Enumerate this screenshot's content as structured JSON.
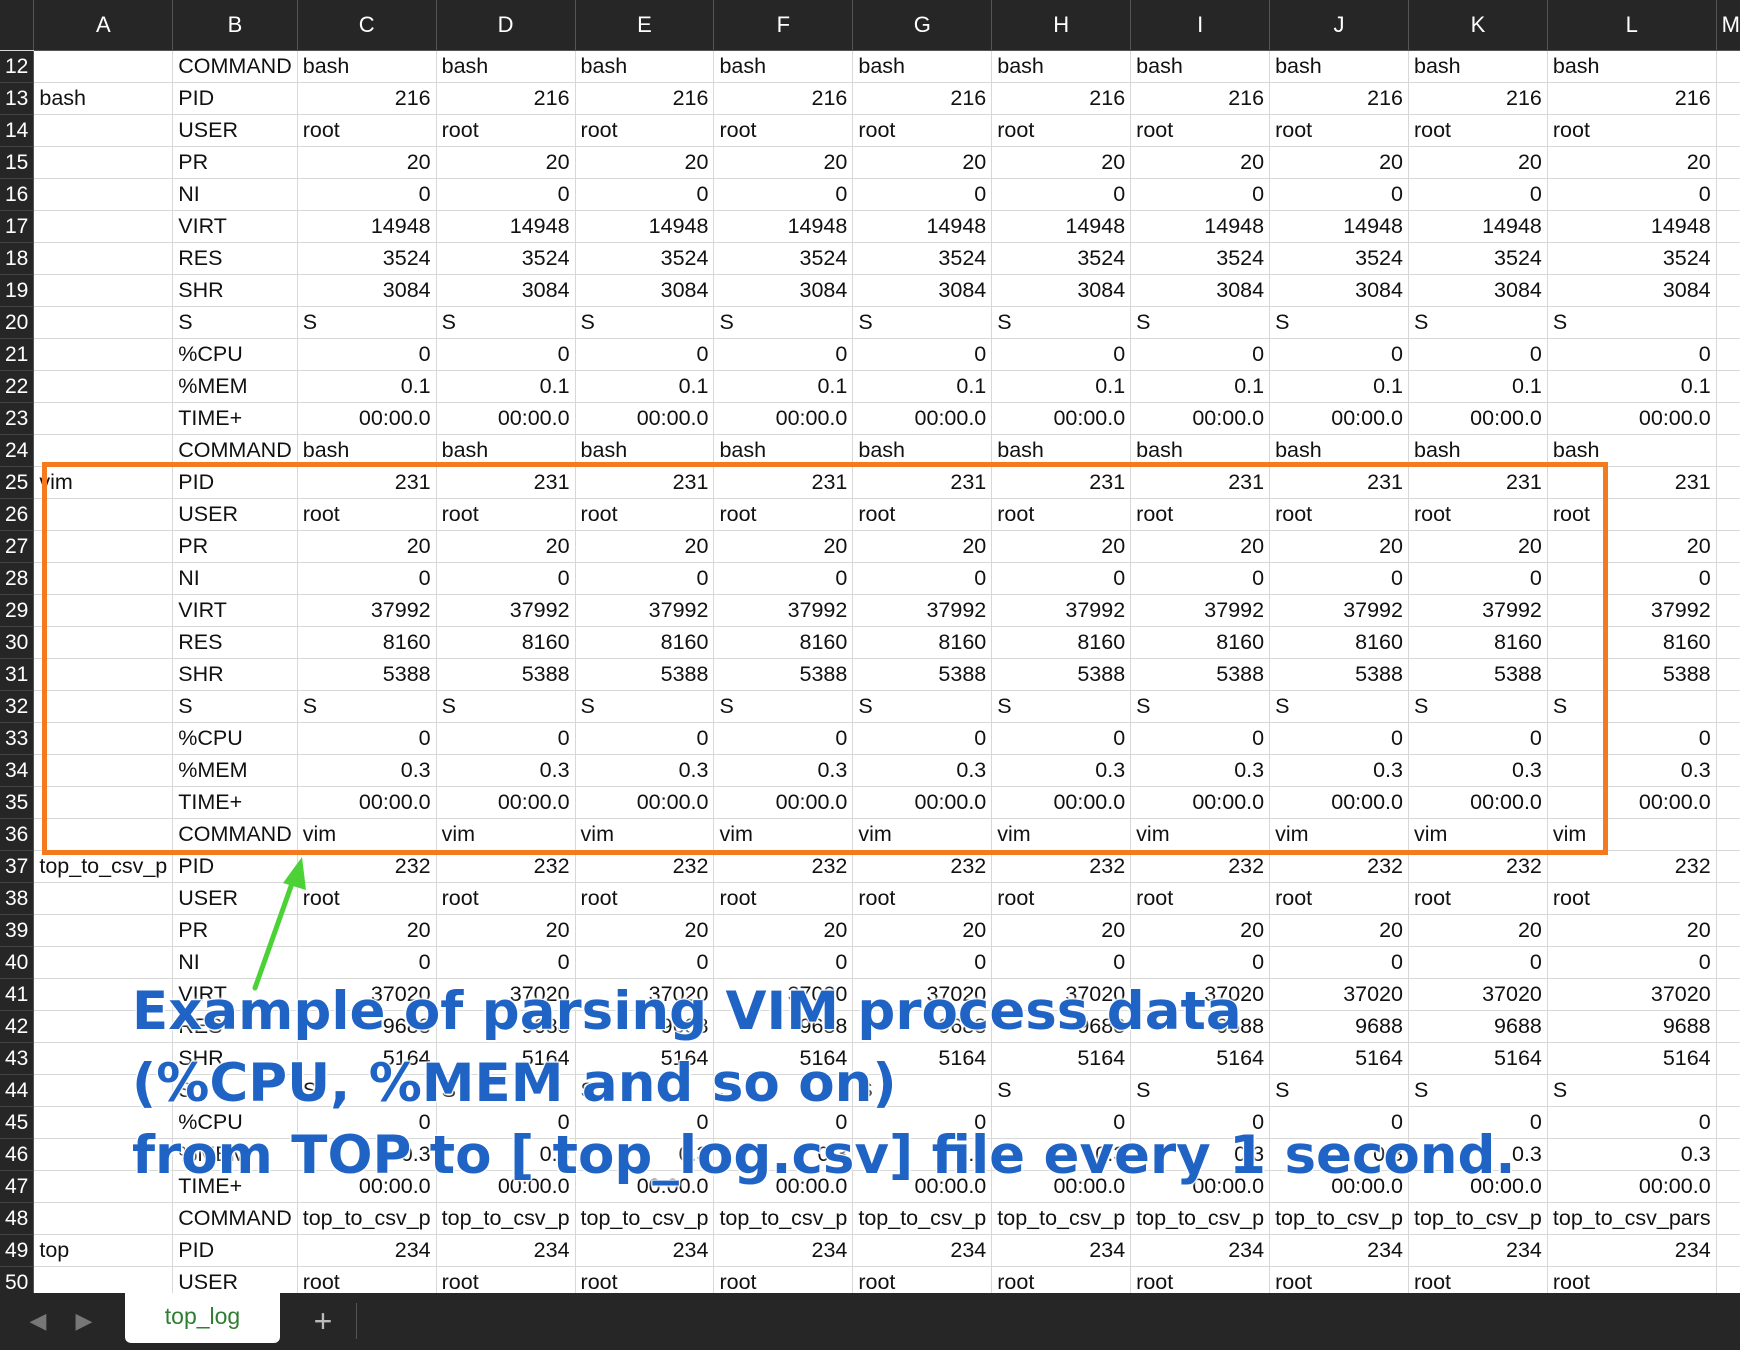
{
  "sheet": {
    "columns": [
      "A",
      "B",
      "C",
      "D",
      "E",
      "F",
      "G",
      "H",
      "I",
      "J",
      "K",
      "L",
      "M"
    ],
    "rows": [
      {
        "n": "12",
        "a": "",
        "b": "COMMAND",
        "v": [
          "bash",
          "bash",
          "bash",
          "bash",
          "bash",
          "bash",
          "bash",
          "bash",
          "bash",
          "bash"
        ],
        "t": "txt"
      },
      {
        "n": "13",
        "a": "bash",
        "b": "PID",
        "v": [
          "216",
          "216",
          "216",
          "216",
          "216",
          "216",
          "216",
          "216",
          "216",
          "216"
        ],
        "t": "num"
      },
      {
        "n": "14",
        "a": "",
        "b": "USER",
        "v": [
          "root",
          "root",
          "root",
          "root",
          "root",
          "root",
          "root",
          "root",
          "root",
          "root"
        ],
        "t": "txt"
      },
      {
        "n": "15",
        "a": "",
        "b": "PR",
        "v": [
          "20",
          "20",
          "20",
          "20",
          "20",
          "20",
          "20",
          "20",
          "20",
          "20"
        ],
        "t": "num"
      },
      {
        "n": "16",
        "a": "",
        "b": "NI",
        "v": [
          "0",
          "0",
          "0",
          "0",
          "0",
          "0",
          "0",
          "0",
          "0",
          "0"
        ],
        "t": "num"
      },
      {
        "n": "17",
        "a": "",
        "b": "VIRT",
        "v": [
          "14948",
          "14948",
          "14948",
          "14948",
          "14948",
          "14948",
          "14948",
          "14948",
          "14948",
          "14948"
        ],
        "t": "num"
      },
      {
        "n": "18",
        "a": "",
        "b": "RES",
        "v": [
          "3524",
          "3524",
          "3524",
          "3524",
          "3524",
          "3524",
          "3524",
          "3524",
          "3524",
          "3524"
        ],
        "t": "num"
      },
      {
        "n": "19",
        "a": "",
        "b": "SHR",
        "v": [
          "3084",
          "3084",
          "3084",
          "3084",
          "3084",
          "3084",
          "3084",
          "3084",
          "3084",
          "3084"
        ],
        "t": "num"
      },
      {
        "n": "20",
        "a": "",
        "b": "S",
        "v": [
          "S",
          "S",
          "S",
          "S",
          "S",
          "S",
          "S",
          "S",
          "S",
          "S"
        ],
        "t": "txt"
      },
      {
        "n": "21",
        "a": "",
        "b": "%CPU",
        "v": [
          "0",
          "0",
          "0",
          "0",
          "0",
          "0",
          "0",
          "0",
          "0",
          "0"
        ],
        "t": "num"
      },
      {
        "n": "22",
        "a": "",
        "b": "%MEM",
        "v": [
          "0.1",
          "0.1",
          "0.1",
          "0.1",
          "0.1",
          "0.1",
          "0.1",
          "0.1",
          "0.1",
          "0.1"
        ],
        "t": "num"
      },
      {
        "n": "23",
        "a": "",
        "b": "TIME+",
        "v": [
          "00:00.0",
          "00:00.0",
          "00:00.0",
          "00:00.0",
          "00:00.0",
          "00:00.0",
          "00:00.0",
          "00:00.0",
          "00:00.0",
          "00:00.0"
        ],
        "t": "num"
      },
      {
        "n": "24",
        "a": "",
        "b": "COMMAND",
        "v": [
          "bash",
          "bash",
          "bash",
          "bash",
          "bash",
          "bash",
          "bash",
          "bash",
          "bash",
          "bash"
        ],
        "t": "txt"
      },
      {
        "n": "25",
        "a": "vim",
        "b": "PID",
        "v": [
          "231",
          "231",
          "231",
          "231",
          "231",
          "231",
          "231",
          "231",
          "231",
          "231"
        ],
        "t": "num"
      },
      {
        "n": "26",
        "a": "",
        "b": "USER",
        "v": [
          "root",
          "root",
          "root",
          "root",
          "root",
          "root",
          "root",
          "root",
          "root",
          "root"
        ],
        "t": "txt"
      },
      {
        "n": "27",
        "a": "",
        "b": "PR",
        "v": [
          "20",
          "20",
          "20",
          "20",
          "20",
          "20",
          "20",
          "20",
          "20",
          "20"
        ],
        "t": "num"
      },
      {
        "n": "28",
        "a": "",
        "b": "NI",
        "v": [
          "0",
          "0",
          "0",
          "0",
          "0",
          "0",
          "0",
          "0",
          "0",
          "0"
        ],
        "t": "num"
      },
      {
        "n": "29",
        "a": "",
        "b": "VIRT",
        "v": [
          "37992",
          "37992",
          "37992",
          "37992",
          "37992",
          "37992",
          "37992",
          "37992",
          "37992",
          "37992"
        ],
        "t": "num"
      },
      {
        "n": "30",
        "a": "",
        "b": "RES",
        "v": [
          "8160",
          "8160",
          "8160",
          "8160",
          "8160",
          "8160",
          "8160",
          "8160",
          "8160",
          "8160"
        ],
        "t": "num"
      },
      {
        "n": "31",
        "a": "",
        "b": "SHR",
        "v": [
          "5388",
          "5388",
          "5388",
          "5388",
          "5388",
          "5388",
          "5388",
          "5388",
          "5388",
          "5388"
        ],
        "t": "num"
      },
      {
        "n": "32",
        "a": "",
        "b": "S",
        "v": [
          "S",
          "S",
          "S",
          "S",
          "S",
          "S",
          "S",
          "S",
          "S",
          "S"
        ],
        "t": "txt"
      },
      {
        "n": "33",
        "a": "",
        "b": "%CPU",
        "v": [
          "0",
          "0",
          "0",
          "0",
          "0",
          "0",
          "0",
          "0",
          "0",
          "0"
        ],
        "t": "num"
      },
      {
        "n": "34",
        "a": "",
        "b": "%MEM",
        "v": [
          "0.3",
          "0.3",
          "0.3",
          "0.3",
          "0.3",
          "0.3",
          "0.3",
          "0.3",
          "0.3",
          "0.3"
        ],
        "t": "num"
      },
      {
        "n": "35",
        "a": "",
        "b": "TIME+",
        "v": [
          "00:00.0",
          "00:00.0",
          "00:00.0",
          "00:00.0",
          "00:00.0",
          "00:00.0",
          "00:00.0",
          "00:00.0",
          "00:00.0",
          "00:00.0"
        ],
        "t": "num"
      },
      {
        "n": "36",
        "a": "",
        "b": "COMMAND",
        "v": [
          "vim",
          "vim",
          "vim",
          "vim",
          "vim",
          "vim",
          "vim",
          "vim",
          "vim",
          "vim"
        ],
        "t": "txt"
      },
      {
        "n": "37",
        "a": "top_to_csv_p",
        "b": "PID",
        "v": [
          "232",
          "232",
          "232",
          "232",
          "232",
          "232",
          "232",
          "232",
          "232",
          "232"
        ],
        "t": "num"
      },
      {
        "n": "38",
        "a": "",
        "b": "USER",
        "v": [
          "root",
          "root",
          "root",
          "root",
          "root",
          "root",
          "root",
          "root",
          "root",
          "root"
        ],
        "t": "txt"
      },
      {
        "n": "39",
        "a": "",
        "b": "PR",
        "v": [
          "20",
          "20",
          "20",
          "20",
          "20",
          "20",
          "20",
          "20",
          "20",
          "20"
        ],
        "t": "num"
      },
      {
        "n": "40",
        "a": "",
        "b": "NI",
        "v": [
          "0",
          "0",
          "0",
          "0",
          "0",
          "0",
          "0",
          "0",
          "0",
          "0"
        ],
        "t": "num"
      },
      {
        "n": "41",
        "a": "",
        "b": "VIRT",
        "v": [
          "37020",
          "37020",
          "37020",
          "37020",
          "37020",
          "37020",
          "37020",
          "37020",
          "37020",
          "37020"
        ],
        "t": "num"
      },
      {
        "n": "42",
        "a": "",
        "b": "RES",
        "v": [
          "9688",
          "9688",
          "9688",
          "9688",
          "9688",
          "9688",
          "9688",
          "9688",
          "9688",
          "9688"
        ],
        "t": "num"
      },
      {
        "n": "43",
        "a": "",
        "b": "SHR",
        "v": [
          "5164",
          "5164",
          "5164",
          "5164",
          "5164",
          "5164",
          "5164",
          "5164",
          "5164",
          "5164"
        ],
        "t": "num"
      },
      {
        "n": "44",
        "a": "",
        "b": "S",
        "v": [
          "S",
          "S",
          "S",
          "S",
          "S",
          "S",
          "S",
          "S",
          "S",
          "S"
        ],
        "t": "txt"
      },
      {
        "n": "45",
        "a": "",
        "b": "%CPU",
        "v": [
          "0",
          "0",
          "0",
          "0",
          "0",
          "0",
          "0",
          "0",
          "0",
          "0"
        ],
        "t": "num"
      },
      {
        "n": "46",
        "a": "",
        "b": "%MEM",
        "v": [
          "0.3",
          "0.3",
          "0.3",
          "0.3",
          "0.3",
          "0.3",
          "0.3",
          "0.3",
          "0.3",
          "0.3"
        ],
        "t": "num"
      },
      {
        "n": "47",
        "a": "",
        "b": "TIME+",
        "v": [
          "00:00.0",
          "00:00.0",
          "00:00.0",
          "00:00.0",
          "00:00.0",
          "00:00.0",
          "00:00.0",
          "00:00.0",
          "00:00.0",
          "00:00.0"
        ],
        "t": "num"
      },
      {
        "n": "48",
        "a": "",
        "b": "COMMAND",
        "v": [
          "top_to_csv_p",
          "top_to_csv_p",
          "top_to_csv_p",
          "top_to_csv_p",
          "top_to_csv_p",
          "top_to_csv_p",
          "top_to_csv_p",
          "top_to_csv_p",
          "top_to_csv_p",
          "top_to_csv_pars"
        ],
        "t": "txt"
      },
      {
        "n": "49",
        "a": "top",
        "b": "PID",
        "v": [
          "234",
          "234",
          "234",
          "234",
          "234",
          "234",
          "234",
          "234",
          "234",
          "234"
        ],
        "t": "num"
      },
      {
        "n": "50",
        "a": "",
        "b": "USER",
        "v": [
          "root",
          "root",
          "root",
          "root",
          "root",
          "root",
          "root",
          "root",
          "root",
          "root"
        ],
        "t": "txt"
      }
    ]
  },
  "annotation": {
    "line1": "Example of parsing VIM process data",
    "line2": "(%CPU, %MEM and so on)",
    "line3": "from TOP to [ top_log.csv] file every 1 second."
  },
  "tabs": {
    "active": "top_log",
    "add": "+",
    "prev": "◀",
    "next": "▶"
  },
  "colors": {
    "highlight": "#f47a1f",
    "arrow": "#4cd137",
    "annotation_text": "#1f63c4",
    "active_tab_text": "#2e7d32"
  }
}
